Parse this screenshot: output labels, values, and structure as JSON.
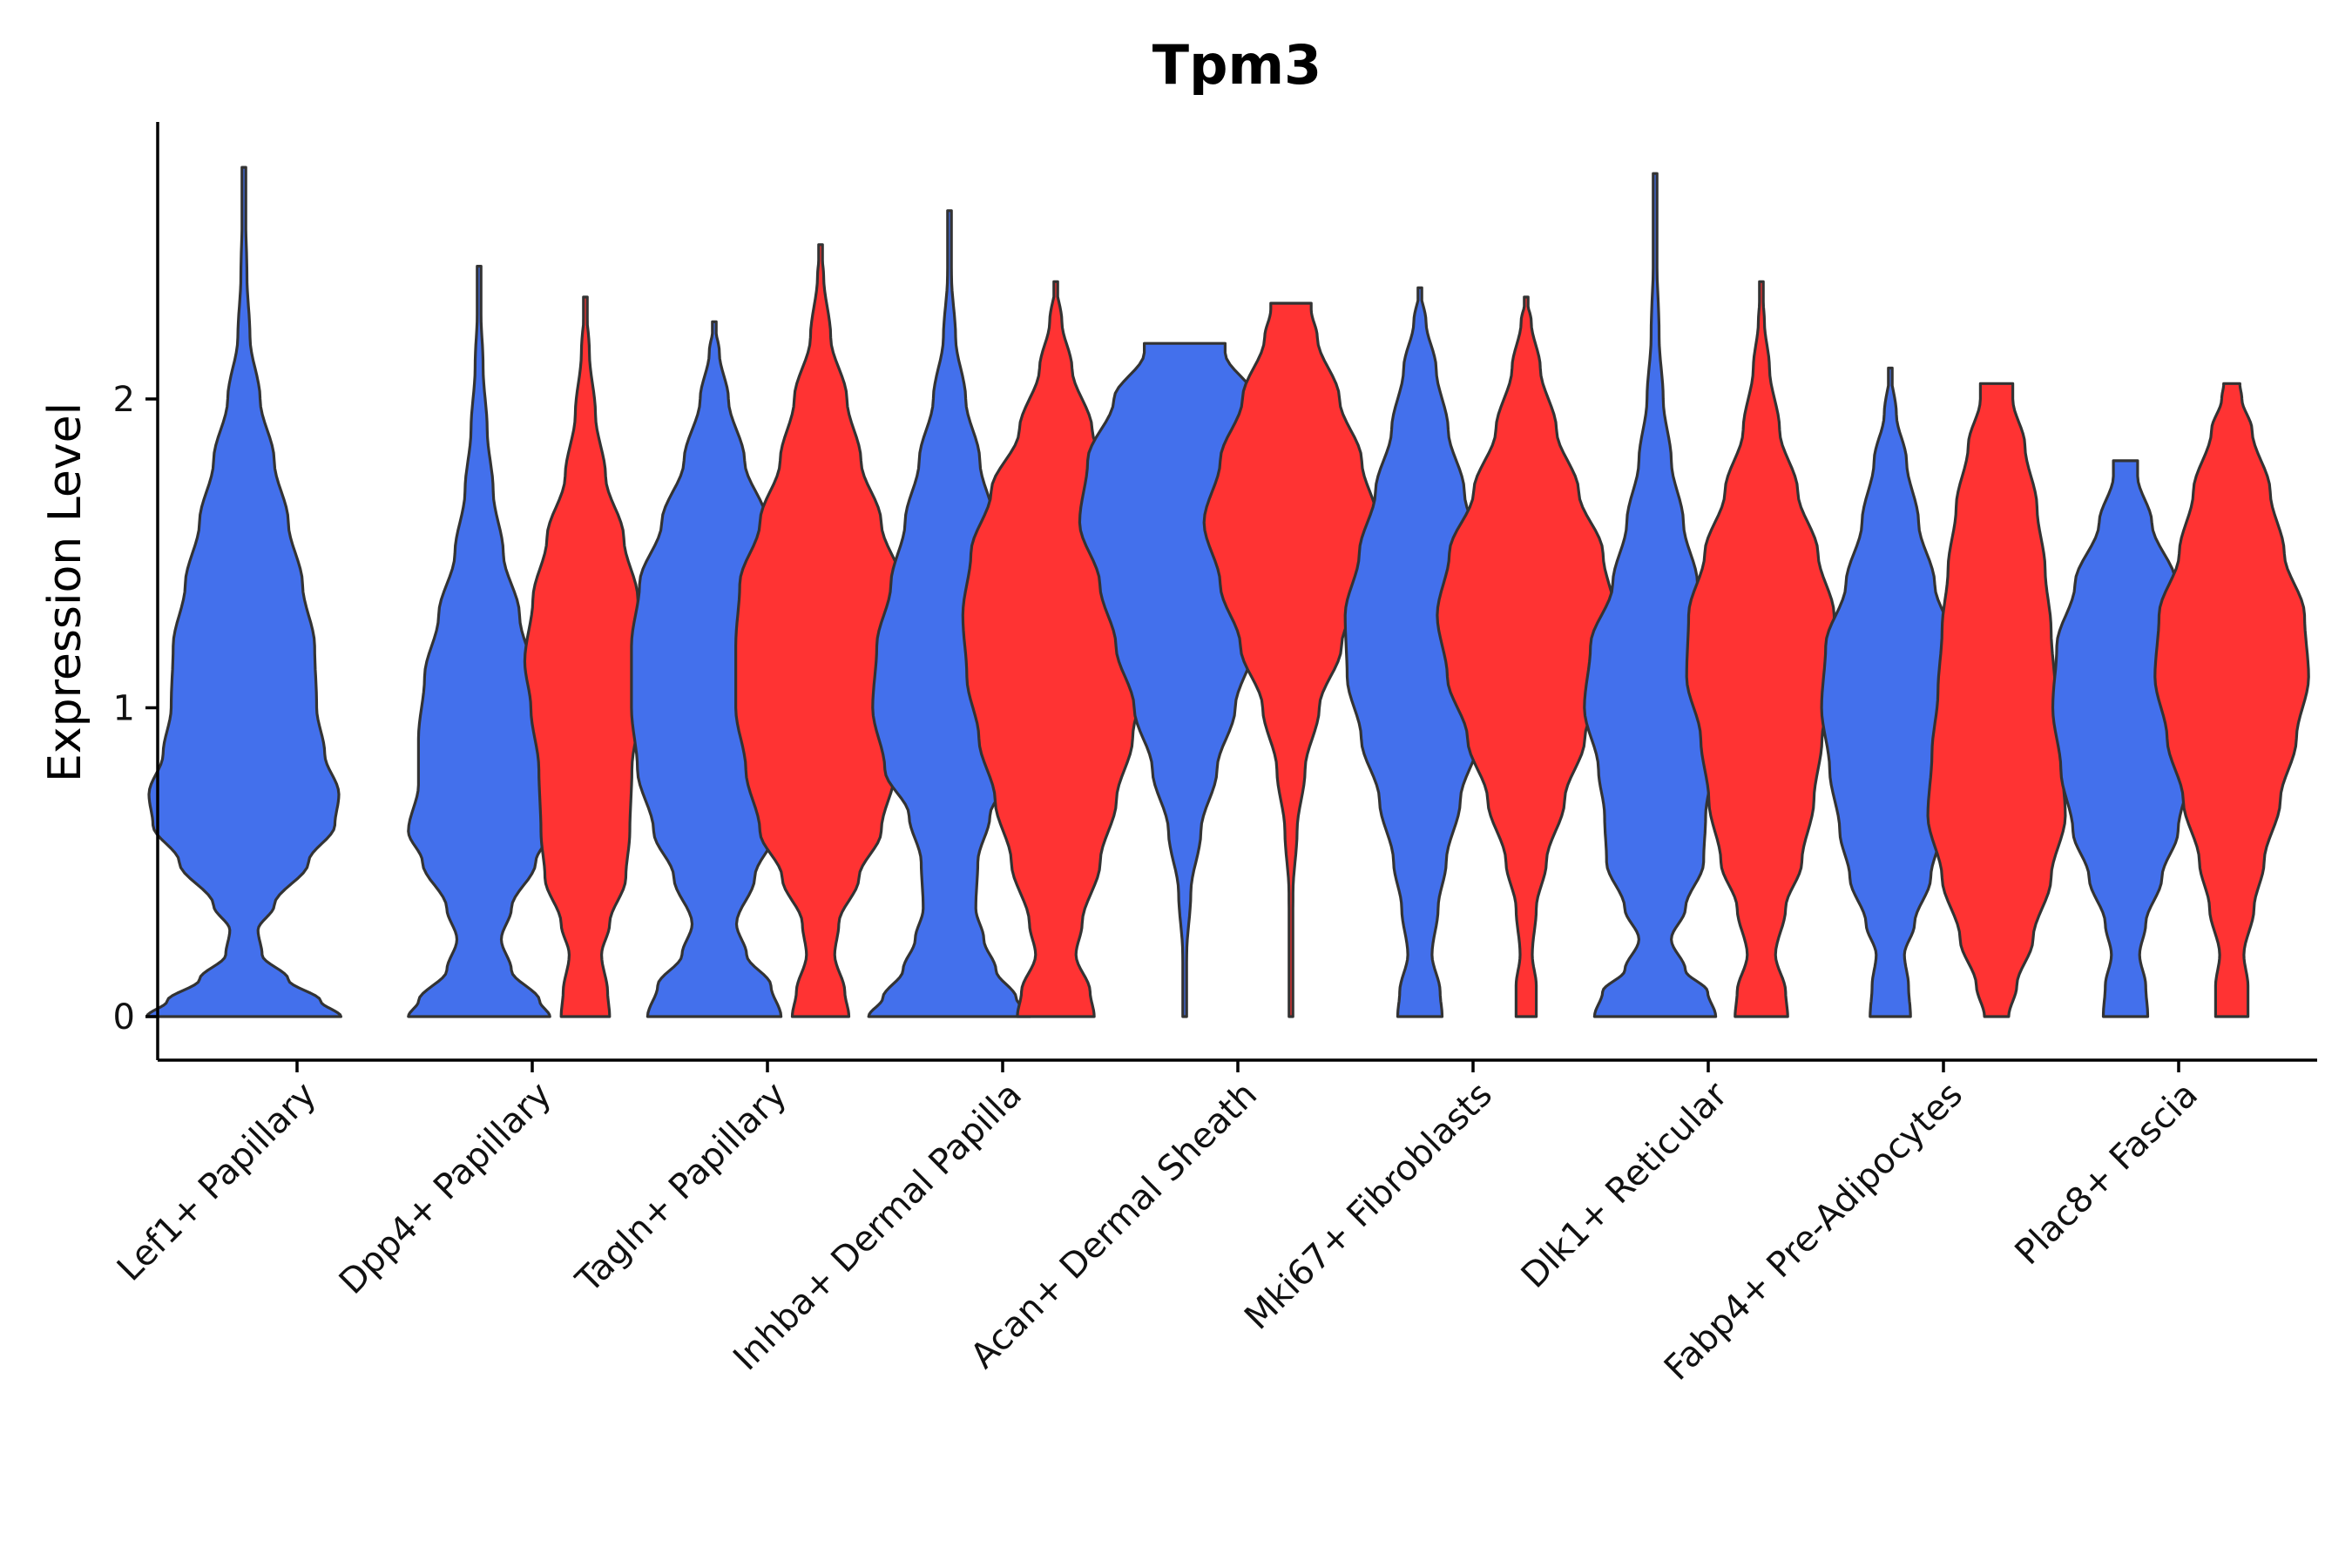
{
  "chart_data": {
    "type": "violin",
    "title": "Tpm3",
    "xlabel": "",
    "ylabel": "Expression Level",
    "ylim": [
      -0.14,
      2.9
    ],
    "yticks": [
      0,
      1,
      2
    ],
    "grid": false,
    "legend": "none",
    "colors": {
      "group_a": "#4370EC",
      "group_b": "#FF3333",
      "outline": "#333333"
    },
    "categories": [
      "Lef1+ Papillary",
      "Dpp4+ Papillary",
      "Tagln+ Papillary",
      "Inhba+ Dermal Papilla",
      "Acan+ Dermal Sheath",
      "Mki67+ Fibroblasts",
      "Dlk1+ Reticular",
      "Fabp4+ Pre-Adipocytes",
      "Plac8+ Fascia"
    ],
    "violins": [
      {
        "category": 0,
        "group": "a",
        "max": 2.75,
        "profile": [
          [
            0,
            0.48
          ],
          [
            0.05,
            0.38
          ],
          [
            0.12,
            0.22
          ],
          [
            0.2,
            0.09
          ],
          [
            0.28,
            0.07
          ],
          [
            0.36,
            0.15
          ],
          [
            0.5,
            0.32
          ],
          [
            0.62,
            0.45
          ],
          [
            0.72,
            0.47
          ],
          [
            0.85,
            0.4
          ],
          [
            1.0,
            0.36
          ],
          [
            1.2,
            0.35
          ],
          [
            1.4,
            0.29
          ],
          [
            1.6,
            0.22
          ],
          [
            1.8,
            0.15
          ],
          [
            2.0,
            0.08
          ],
          [
            2.2,
            0.03
          ],
          [
            2.4,
            0.015
          ],
          [
            2.6,
            0.008
          ],
          [
            2.75,
            0
          ]
        ]
      },
      {
        "category": 1,
        "group": "a",
        "max": 2.43,
        "profile": [
          [
            0,
            0.35
          ],
          [
            0.05,
            0.3
          ],
          [
            0.15,
            0.16
          ],
          [
            0.25,
            0.11
          ],
          [
            0.35,
            0.16
          ],
          [
            0.5,
            0.28
          ],
          [
            0.6,
            0.35
          ],
          [
            0.75,
            0.3
          ],
          [
            0.9,
            0.3
          ],
          [
            1.1,
            0.27
          ],
          [
            1.3,
            0.2
          ],
          [
            1.5,
            0.12
          ],
          [
            1.7,
            0.07
          ],
          [
            1.9,
            0.04
          ],
          [
            2.1,
            0.02
          ],
          [
            2.3,
            0.008
          ],
          [
            2.43,
            0
          ]
        ]
      },
      {
        "category": 1,
        "group": "b",
        "max": 2.33,
        "profile": [
          [
            0,
            0.12
          ],
          [
            0.08,
            0.11
          ],
          [
            0.2,
            0.08
          ],
          [
            0.3,
            0.12
          ],
          [
            0.45,
            0.2
          ],
          [
            0.6,
            0.22
          ],
          [
            0.8,
            0.23
          ],
          [
            1.0,
            0.27
          ],
          [
            1.15,
            0.3
          ],
          [
            1.35,
            0.26
          ],
          [
            1.55,
            0.19
          ],
          [
            1.75,
            0.1
          ],
          [
            1.95,
            0.05
          ],
          [
            2.15,
            0.02
          ],
          [
            2.33,
            0
          ]
        ]
      },
      {
        "category": 2,
        "group": "a",
        "max": 2.25,
        "profile": [
          [
            0,
            0.33
          ],
          [
            0.1,
            0.28
          ],
          [
            0.2,
            0.16
          ],
          [
            0.3,
            0.11
          ],
          [
            0.45,
            0.2
          ],
          [
            0.6,
            0.3
          ],
          [
            0.8,
            0.38
          ],
          [
            1.0,
            0.41
          ],
          [
            1.2,
            0.41
          ],
          [
            1.4,
            0.37
          ],
          [
            1.6,
            0.26
          ],
          [
            1.8,
            0.15
          ],
          [
            2.0,
            0.07
          ],
          [
            2.15,
            0.025
          ],
          [
            2.25,
            0
          ]
        ]
      },
      {
        "category": 2,
        "group": "b",
        "max": 2.5,
        "profile": [
          [
            0,
            0.14
          ],
          [
            0.08,
            0.12
          ],
          [
            0.2,
            0.07
          ],
          [
            0.3,
            0.09
          ],
          [
            0.45,
            0.19
          ],
          [
            0.6,
            0.3
          ],
          [
            0.8,
            0.37
          ],
          [
            1.0,
            0.42
          ],
          [
            1.2,
            0.42
          ],
          [
            1.4,
            0.4
          ],
          [
            1.6,
            0.3
          ],
          [
            1.8,
            0.2
          ],
          [
            2.0,
            0.13
          ],
          [
            2.2,
            0.05
          ],
          [
            2.4,
            0.015
          ],
          [
            2.5,
            0
          ]
        ]
      },
      {
        "category": 3,
        "group": "a",
        "max": 2.61,
        "profile": [
          [
            0,
            0.4
          ],
          [
            0.06,
            0.33
          ],
          [
            0.15,
            0.23
          ],
          [
            0.25,
            0.17
          ],
          [
            0.35,
            0.13
          ],
          [
            0.5,
            0.14
          ],
          [
            0.65,
            0.2
          ],
          [
            0.8,
            0.32
          ],
          [
            1.0,
            0.38
          ],
          [
            1.2,
            0.36
          ],
          [
            1.4,
            0.29
          ],
          [
            1.6,
            0.22
          ],
          [
            1.8,
            0.15
          ],
          [
            2.0,
            0.08
          ],
          [
            2.2,
            0.03
          ],
          [
            2.4,
            0.01
          ],
          [
            2.61,
            0
          ]
        ]
      },
      {
        "category": 3,
        "group": "b",
        "max": 2.38,
        "profile": [
          [
            0,
            0.19
          ],
          [
            0.08,
            0.17
          ],
          [
            0.2,
            0.1
          ],
          [
            0.3,
            0.13
          ],
          [
            0.5,
            0.22
          ],
          [
            0.7,
            0.3
          ],
          [
            0.9,
            0.38
          ],
          [
            1.1,
            0.44
          ],
          [
            1.3,
            0.46
          ],
          [
            1.5,
            0.42
          ],
          [
            1.7,
            0.32
          ],
          [
            1.9,
            0.18
          ],
          [
            2.1,
            0.08
          ],
          [
            2.25,
            0.03
          ],
          [
            2.38,
            0
          ]
        ]
      },
      {
        "category": 4,
        "group": "a",
        "max": 2.18,
        "profile": [
          [
            0,
            0.0
          ],
          [
            0.2,
            0.01
          ],
          [
            0.4,
            0.03
          ],
          [
            0.6,
            0.08
          ],
          [
            0.8,
            0.16
          ],
          [
            1.0,
            0.25
          ],
          [
            1.2,
            0.34
          ],
          [
            1.4,
            0.42
          ],
          [
            1.6,
            0.52
          ],
          [
            1.8,
            0.48
          ],
          [
            2.0,
            0.35
          ],
          [
            2.15,
            0.2
          ],
          [
            2.18,
            0.2
          ]
        ]
      },
      {
        "category": 4,
        "group": "b",
        "max": 2.31,
        "profile": [
          [
            0,
            0.0
          ],
          [
            0.2,
            0.005
          ],
          [
            0.4,
            0.01
          ],
          [
            0.6,
            0.03
          ],
          [
            0.8,
            0.07
          ],
          [
            1.0,
            0.14
          ],
          [
            1.2,
            0.25
          ],
          [
            1.4,
            0.35
          ],
          [
            1.6,
            0.43
          ],
          [
            1.8,
            0.35
          ],
          [
            2.0,
            0.24
          ],
          [
            2.2,
            0.13
          ],
          [
            2.29,
            0.1
          ],
          [
            2.31,
            0.1
          ]
        ]
      },
      {
        "category": 5,
        "group": "a",
        "max": 2.36,
        "profile": [
          [
            0,
            0.11
          ],
          [
            0.08,
            0.1
          ],
          [
            0.2,
            0.06
          ],
          [
            0.35,
            0.09
          ],
          [
            0.5,
            0.13
          ],
          [
            0.7,
            0.2
          ],
          [
            0.9,
            0.29
          ],
          [
            1.1,
            0.36
          ],
          [
            1.3,
            0.37
          ],
          [
            1.5,
            0.3
          ],
          [
            1.7,
            0.22
          ],
          [
            1.9,
            0.14
          ],
          [
            2.1,
            0.08
          ],
          [
            2.25,
            0.03
          ],
          [
            2.36,
            0
          ]
        ]
      },
      {
        "category": 5,
        "group": "b",
        "max": 2.33,
        "profile": [
          [
            0,
            0.05
          ],
          [
            0.1,
            0.05
          ],
          [
            0.2,
            0.03
          ],
          [
            0.35,
            0.05
          ],
          [
            0.5,
            0.1
          ],
          [
            0.7,
            0.19
          ],
          [
            0.9,
            0.29
          ],
          [
            1.1,
            0.39
          ],
          [
            1.3,
            0.44
          ],
          [
            1.5,
            0.38
          ],
          [
            1.7,
            0.26
          ],
          [
            1.9,
            0.15
          ],
          [
            2.1,
            0.07
          ],
          [
            2.25,
            0.025
          ],
          [
            2.33,
            0
          ]
        ]
      },
      {
        "category": 6,
        "group": "a",
        "max": 2.73,
        "profile": [
          [
            0,
            0.3
          ],
          [
            0.08,
            0.26
          ],
          [
            0.15,
            0.15
          ],
          [
            0.25,
            0.08
          ],
          [
            0.35,
            0.15
          ],
          [
            0.5,
            0.24
          ],
          [
            0.65,
            0.25
          ],
          [
            0.8,
            0.28
          ],
          [
            1.0,
            0.35
          ],
          [
            1.2,
            0.32
          ],
          [
            1.4,
            0.21
          ],
          [
            1.6,
            0.14
          ],
          [
            1.8,
            0.08
          ],
          [
            2.0,
            0.04
          ],
          [
            2.2,
            0.02
          ],
          [
            2.5,
            0.006
          ],
          [
            2.73,
            0
          ]
        ]
      },
      {
        "category": 6,
        "group": "b",
        "max": 2.38,
        "profile": [
          [
            0,
            0.13
          ],
          [
            0.08,
            0.12
          ],
          [
            0.2,
            0.07
          ],
          [
            0.35,
            0.12
          ],
          [
            0.5,
            0.2
          ],
          [
            0.7,
            0.26
          ],
          [
            0.9,
            0.3
          ],
          [
            1.1,
            0.37
          ],
          [
            1.3,
            0.36
          ],
          [
            1.5,
            0.28
          ],
          [
            1.7,
            0.18
          ],
          [
            1.9,
            0.09
          ],
          [
            2.1,
            0.04
          ],
          [
            2.25,
            0.015
          ],
          [
            2.38,
            0
          ]
        ]
      },
      {
        "category": 7,
        "group": "a",
        "max": 2.1,
        "profile": [
          [
            0,
            0.1
          ],
          [
            0.1,
            0.09
          ],
          [
            0.2,
            0.07
          ],
          [
            0.3,
            0.12
          ],
          [
            0.45,
            0.2
          ],
          [
            0.6,
            0.25
          ],
          [
            0.8,
            0.3
          ],
          [
            1.0,
            0.34
          ],
          [
            1.2,
            0.32
          ],
          [
            1.4,
            0.22
          ],
          [
            1.6,
            0.14
          ],
          [
            1.8,
            0.08
          ],
          [
            1.95,
            0.03
          ],
          [
            2.1,
            0
          ]
        ]
      },
      {
        "category": 7,
        "group": "b",
        "max": 2.05,
        "profile": [
          [
            0,
            0.06
          ],
          [
            0.1,
            0.1
          ],
          [
            0.25,
            0.18
          ],
          [
            0.45,
            0.27
          ],
          [
            0.65,
            0.34
          ],
          [
            0.85,
            0.32
          ],
          [
            1.05,
            0.29
          ],
          [
            1.25,
            0.27
          ],
          [
            1.45,
            0.24
          ],
          [
            1.65,
            0.2
          ],
          [
            1.85,
            0.14
          ],
          [
            2.0,
            0.08
          ],
          [
            2.05,
            0.08
          ]
        ]
      },
      {
        "category": 8,
        "group": "a",
        "max": 1.8,
        "profile": [
          [
            0,
            0.11
          ],
          [
            0.1,
            0.1
          ],
          [
            0.2,
            0.07
          ],
          [
            0.3,
            0.1
          ],
          [
            0.45,
            0.18
          ],
          [
            0.6,
            0.26
          ],
          [
            0.8,
            0.32
          ],
          [
            1.0,
            0.36
          ],
          [
            1.2,
            0.34
          ],
          [
            1.4,
            0.25
          ],
          [
            1.6,
            0.13
          ],
          [
            1.75,
            0.06
          ],
          [
            1.8,
            0.06
          ]
        ]
      },
      {
        "category": 8,
        "group": "b",
        "max": 2.05,
        "profile": [
          [
            0,
            0.08
          ],
          [
            0.1,
            0.08
          ],
          [
            0.2,
            0.06
          ],
          [
            0.35,
            0.11
          ],
          [
            0.5,
            0.16
          ],
          [
            0.7,
            0.24
          ],
          [
            0.9,
            0.32
          ],
          [
            1.1,
            0.38
          ],
          [
            1.3,
            0.36
          ],
          [
            1.5,
            0.26
          ],
          [
            1.7,
            0.19
          ],
          [
            1.9,
            0.1
          ],
          [
            2.0,
            0.05
          ],
          [
            2.05,
            0.04
          ]
        ]
      }
    ]
  }
}
